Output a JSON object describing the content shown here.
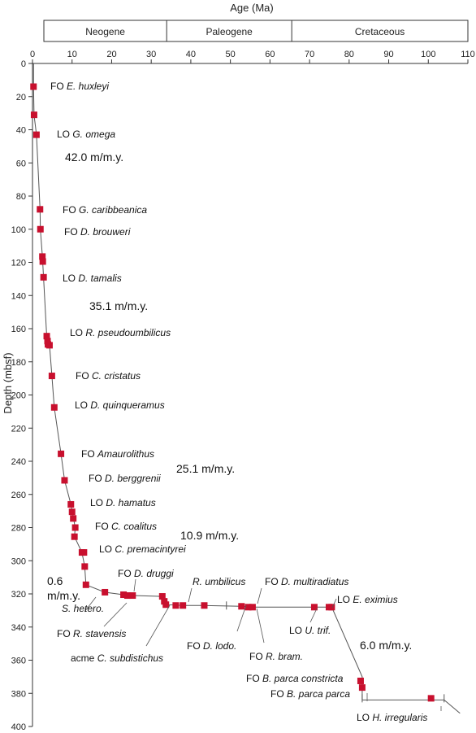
{
  "chart_data": {
    "type": "scatter",
    "xlabel": "Age (Ma)",
    "ylabel": "Depth (mbsf)",
    "xlim": [
      0,
      110
    ],
    "ylim": [
      400,
      0
    ],
    "xticks": [
      0,
      10,
      20,
      30,
      40,
      50,
      60,
      70,
      80,
      90,
      100,
      110
    ],
    "yticks": [
      0,
      20,
      40,
      60,
      80,
      100,
      120,
      140,
      160,
      180,
      200,
      220,
      240,
      260,
      280,
      300,
      320,
      340,
      360,
      380,
      400
    ],
    "periods": [
      {
        "name": "Neogene",
        "start": 0,
        "end": 33.9
      },
      {
        "name": "Paleogene",
        "start": 33.9,
        "end": 65.5
      },
      {
        "name": "Cretaceous",
        "start": 65.5,
        "end": 110
      }
    ],
    "series": [
      {
        "values": [
          [
            0.26,
            14
          ],
          [
            0.4,
            31
          ],
          [
            1.0,
            43
          ],
          [
            1.9,
            88
          ],
          [
            2.0,
            100
          ],
          [
            2.5,
            116.5
          ],
          [
            2.6,
            119.5
          ],
          [
            2.8,
            129
          ],
          [
            3.6,
            164.5
          ],
          [
            3.8,
            167.5
          ],
          [
            3.9,
            169.5
          ],
          [
            4.3,
            170
          ],
          [
            4.9,
            188.5
          ],
          [
            5.5,
            207.5
          ],
          [
            7.2,
            235.5
          ],
          [
            8.1,
            251.5
          ],
          [
            9.7,
            266
          ],
          [
            10.0,
            270.5
          ],
          [
            10.3,
            274.5
          ],
          [
            10.8,
            280
          ],
          [
            10.6,
            285.5
          ],
          [
            12.5,
            295
          ],
          [
            13.0,
            295
          ],
          [
            13.2,
            303.5
          ],
          [
            13.5,
            314.5
          ],
          [
            18.3,
            319
          ],
          [
            23.0,
            320.5
          ],
          [
            24.0,
            321
          ],
          [
            25.3,
            321
          ],
          [
            32.8,
            321.5
          ],
          [
            33.3,
            324.5
          ],
          [
            33.7,
            326.5
          ],
          [
            36.2,
            327
          ],
          [
            38.0,
            327
          ],
          [
            43.4,
            327
          ],
          [
            52.8,
            327.5
          ],
          [
            54.5,
            328
          ],
          [
            55.6,
            328
          ],
          [
            71.2,
            328
          ],
          [
            74.9,
            328
          ],
          [
            75.6,
            328
          ],
          [
            82.9,
            372.5
          ],
          [
            83.3,
            376.5
          ],
          [
            100.7,
            383
          ]
        ],
        "color": "#c8102e"
      }
    ],
    "trend_line": [
      [
        0.26,
        0
      ],
      [
        0.26,
        14
      ],
      [
        0.4,
        31
      ],
      [
        1.0,
        43
      ],
      [
        1.9,
        88
      ],
      [
        2.0,
        100
      ],
      [
        2.5,
        116.5
      ],
      [
        2.8,
        129
      ],
      [
        3.6,
        164.5
      ],
      [
        4.3,
        170
      ],
      [
        4.9,
        188.5
      ],
      [
        5.5,
        207.5
      ],
      [
        7.2,
        235.5
      ],
      [
        8.1,
        251.5
      ],
      [
        9.7,
        266
      ],
      [
        10.8,
        280
      ],
      [
        10.6,
        285.5
      ],
      [
        12.5,
        295
      ],
      [
        13.2,
        303.5
      ],
      [
        13.5,
        314.5
      ],
      [
        18.3,
        319
      ],
      [
        23.0,
        320.5
      ],
      [
        25.3,
        321
      ],
      [
        32.8,
        321.5
      ],
      [
        33.3,
        324.5
      ],
      [
        33.7,
        326.5
      ],
      [
        38.0,
        327
      ],
      [
        43.4,
        327
      ],
      [
        52.8,
        327.5
      ],
      [
        55.6,
        328
      ],
      [
        75.6,
        328
      ],
      [
        83.3,
        370
      ],
      [
        83.3,
        384
      ],
      [
        104,
        384
      ]
    ],
    "tail_line": [
      [
        104,
        384
      ],
      [
        108,
        392
      ]
    ],
    "error_bars": [
      [
        49.0,
        327
      ],
      [
        83.3,
        383
      ],
      [
        104.0,
        383
      ]
    ],
    "annotations": [
      {
        "parts": [
          {
            "t": "FO "
          },
          {
            "t": "E. huxleyi",
            "i": true
          }
        ]
      },
      {
        "parts": [
          {
            "t": "LO "
          },
          {
            "t": "G. omega",
            "i": true
          }
        ]
      },
      {
        "parts": [
          {
            "t": "FO "
          },
          {
            "t": "G. caribbeanica",
            "i": true
          }
        ]
      },
      {
        "parts": [
          {
            "t": "FO "
          },
          {
            "t": "D. brouweri",
            "i": true
          }
        ]
      },
      {
        "parts": [
          {
            "t": "LO "
          },
          {
            "t": "D. tamalis",
            "i": true
          }
        ]
      },
      {
        "parts": [
          {
            "t": "LO "
          },
          {
            "t": "R. pseudoumbilicus",
            "i": true
          }
        ]
      },
      {
        "parts": [
          {
            "t": "FO "
          },
          {
            "t": "C. cristatus",
            "i": true
          }
        ]
      },
      {
        "parts": [
          {
            "t": "LO "
          },
          {
            "t": "D. quinqueramus",
            "i": true
          }
        ]
      },
      {
        "parts": [
          {
            "t": "FO "
          },
          {
            "t": "Amaurolithus",
            "i": true
          }
        ]
      },
      {
        "parts": [
          {
            "t": "FO "
          },
          {
            "t": "D. berggrenii",
            "i": true
          }
        ]
      },
      {
        "parts": [
          {
            "t": "LO "
          },
          {
            "t": "D. hamatus",
            "i": true
          }
        ]
      },
      {
        "parts": [
          {
            "t": "FO "
          },
          {
            "t": "C. coalitus",
            "i": true
          }
        ]
      },
      {
        "parts": [
          {
            "t": "LO "
          },
          {
            "t": "C. premacintyrei",
            "i": true
          }
        ]
      },
      {
        "parts": [
          {
            "t": "FO "
          },
          {
            "t": "D. druggi",
            "i": true
          }
        ]
      },
      {
        "parts": [
          {
            "t": "R. umbilicus",
            "i": true
          }
        ]
      },
      {
        "parts": [
          {
            "t": "FO "
          },
          {
            "t": "D. multiradiatus",
            "i": true
          }
        ]
      },
      {
        "parts": [
          {
            "t": "LO "
          },
          {
            "t": "E. eximius",
            "i": true
          }
        ]
      },
      {
        "parts": [
          {
            "t": "S. hetero.",
            "i": true
          }
        ]
      },
      {
        "parts": [
          {
            "t": "FO "
          },
          {
            "t": "R. stavensis",
            "i": true
          }
        ]
      },
      {
        "parts": [
          {
            "t": "acme "
          },
          {
            "t": "C. subdistichus",
            "i": true
          }
        ]
      },
      {
        "parts": [
          {
            "t": "FO "
          },
          {
            "t": "D. lodo.",
            "i": true
          }
        ]
      },
      {
        "parts": [
          {
            "t": "FO "
          },
          {
            "t": "R. bram.",
            "i": true
          }
        ]
      },
      {
        "parts": [
          {
            "t": "LO "
          },
          {
            "t": "U. trif.",
            "i": true
          }
        ]
      },
      {
        "parts": [
          {
            "t": "FO "
          },
          {
            "t": "B. parca constricta",
            "i": true
          }
        ]
      },
      {
        "parts": [
          {
            "t": "FO "
          },
          {
            "t": "B. parca parca",
            "i": true
          }
        ]
      },
      {
        "parts": [
          {
            "t": "LO "
          },
          {
            "t": "H. irregularis",
            "i": true
          }
        ]
      }
    ],
    "sed_rates": [
      "42.0 m/m.y.",
      "35.1 m/m.y.",
      "25.1 m/m.y.",
      "10.9 m/m.y.",
      "0.6",
      "m/m.y.",
      "6.0 m/m.y."
    ]
  }
}
